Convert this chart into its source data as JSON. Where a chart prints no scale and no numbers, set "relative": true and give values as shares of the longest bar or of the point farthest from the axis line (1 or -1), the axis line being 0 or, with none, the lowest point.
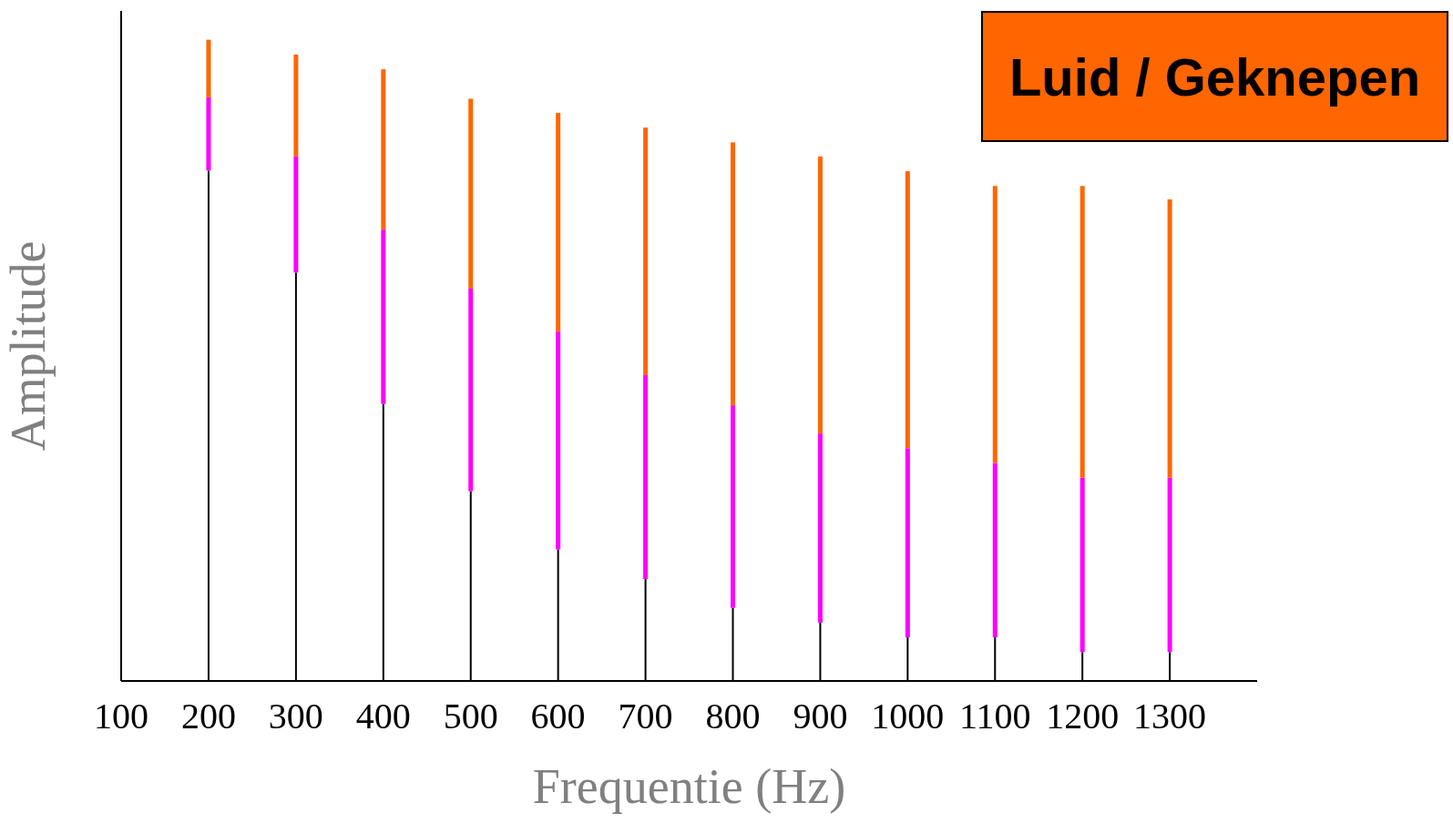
{
  "chart_data": {
    "type": "bar",
    "title": "Luid / Geknepen",
    "xlabel": "Frequentie (Hz)",
    "ylabel": "Amplitude",
    "relative": true,
    "stacked": true,
    "x": [
      200,
      300,
      400,
      500,
      600,
      700,
      800,
      900,
      1000,
      1100,
      1200,
      1300
    ],
    "xlim": [
      100,
      1400
    ],
    "xticks": [
      100,
      200,
      300,
      400,
      500,
      600,
      700,
      800,
      900,
      1000,
      1100,
      1200,
      1300
    ],
    "series": [
      {
        "color": "#000000",
        "values": [
          0.796,
          0.637,
          0.432,
          0.296,
          0.205,
          0.159,
          0.114,
          0.091,
          0.068,
          0.068,
          0.045,
          0.045
        ]
      },
      {
        "color": "#ff00ff",
        "values": [
          0.114,
          0.181,
          0.272,
          0.316,
          0.34,
          0.318,
          0.316,
          0.295,
          0.295,
          0.272,
          0.272,
          0.272
        ]
      },
      {
        "color": "#ff6600",
        "values": [
          0.09,
          0.159,
          0.25,
          0.296,
          0.341,
          0.386,
          0.41,
          0.432,
          0.432,
          0.432,
          0.455,
          0.434
        ]
      }
    ],
    "grid": false
  }
}
